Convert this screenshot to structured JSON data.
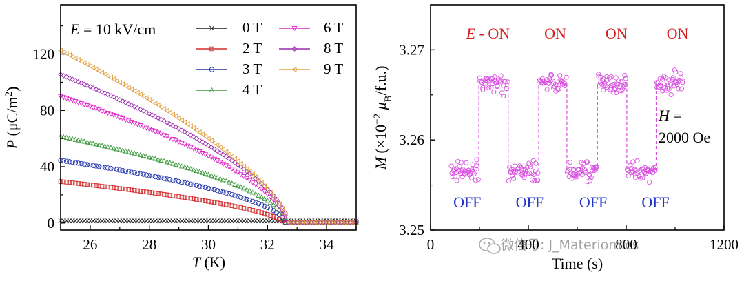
{
  "chart_data": [
    {
      "type": "scatter",
      "panel": "left",
      "annotation_var": "E",
      "annotation_rest": " = 10 kV/cm",
      "xlabel_var": "T",
      "xlabel_unit": " (K)",
      "ylabel_var": "P",
      "ylabel_unit": " (μC/m",
      "ylabel_exp": "2",
      "ylabel_close": ")",
      "xlim": [
        25,
        35
      ],
      "ylim": [
        -5,
        155
      ],
      "xticks": [
        26,
        28,
        30,
        32,
        34
      ],
      "yticks": [
        0,
        40,
        80,
        120
      ],
      "grid": false,
      "legend_position": "top-right",
      "series": [
        {
          "name": "0 T",
          "color": "#1a1a1a",
          "marker": "x",
          "P0": 1.5,
          "Tc": 32.55,
          "k": 1.0,
          "tail": 1.5
        },
        {
          "name": "2 T",
          "color": "#d22b2b",
          "marker": "square",
          "P0": 29.5,
          "Tc": 32.55,
          "k": 0.6,
          "tail": 0.6
        },
        {
          "name": "3 T",
          "color": "#2233aa",
          "marker": "circle",
          "P0": 44.5,
          "Tc": 32.6,
          "k": 0.55,
          "tail": 0.5
        },
        {
          "name": "4 T",
          "color": "#3a9a3a",
          "marker": "triangle-up",
          "P0": 61.5,
          "Tc": 32.65,
          "k": 0.55,
          "tail": 0.5
        },
        {
          "name": "6 T",
          "color": "#e022c8",
          "marker": "triangle-down",
          "P0": 90,
          "Tc": 32.65,
          "k": 0.6,
          "tail": 0.5
        },
        {
          "name": "8 T",
          "color": "#9a2bb0",
          "marker": "diamond",
          "P0": 105.5,
          "Tc": 32.7,
          "k": 0.62,
          "tail": 0.5
        },
        {
          "name": "9 T",
          "color": "#e0a040",
          "marker": "triangle-left",
          "P0": 122.5,
          "Tc": 32.7,
          "k": 0.68,
          "tail": 0.5
        }
      ]
    },
    {
      "type": "scatter",
      "panel": "right",
      "xlabel": "Time (s)",
      "ylabel_var": "M",
      "ylabel_mid": " (×10",
      "ylabel_exp": "−2",
      "ylabel_mu": " μ",
      "ylabel_sub": "B",
      "ylabel_end": "/f.u.)",
      "xlim": [
        0,
        1200
      ],
      "ylim": [
        3.25,
        3.275
      ],
      "xticks": [
        0,
        400,
        800,
        1200
      ],
      "yticks": [
        3.25,
        3.26,
        3.27
      ],
      "ytick_labels": [
        "3.25",
        "3.26",
        "3.27"
      ],
      "grid": false,
      "series_color": "#d84ee0",
      "series_values": {
        "off": 3.2565,
        "on": 3.2663
      },
      "segments": [
        {
          "state": "OFF",
          "t0": 85,
          "t1": 195
        },
        {
          "state": "ON",
          "t0": 200,
          "t1": 315
        },
        {
          "state": "OFF",
          "t0": 320,
          "t1": 440
        },
        {
          "state": "ON",
          "t0": 445,
          "t1": 555
        },
        {
          "state": "OFF",
          "t0": 560,
          "t1": 680
        },
        {
          "state": "ON",
          "t0": 685,
          "t1": 800
        },
        {
          "state": "OFF",
          "t0": 805,
          "t1": 920
        },
        {
          "state": "ON",
          "t0": 925,
          "t1": 1035
        }
      ],
      "on_labels": [
        {
          "var": "E",
          "text": " - ON",
          "t": 235
        },
        {
          "var": "",
          "text": "ON",
          "t": 510
        },
        {
          "var": "",
          "text": "ON",
          "t": 760
        },
        {
          "var": "",
          "text": "ON",
          "t": 1010
        }
      ],
      "off_labels": [
        {
          "text": "OFF",
          "t": 150
        },
        {
          "text": "OFF",
          "t": 405
        },
        {
          "text": "OFF",
          "t": 665
        },
        {
          "text": "OFF",
          "t": 920
        }
      ],
      "on_color": "#d42020",
      "off_color": "#2233cc",
      "field_var": "H",
      "field_eq": " =",
      "field_value": "2000 Oe"
    }
  ],
  "watermark": "微信号: J_Materiomics"
}
